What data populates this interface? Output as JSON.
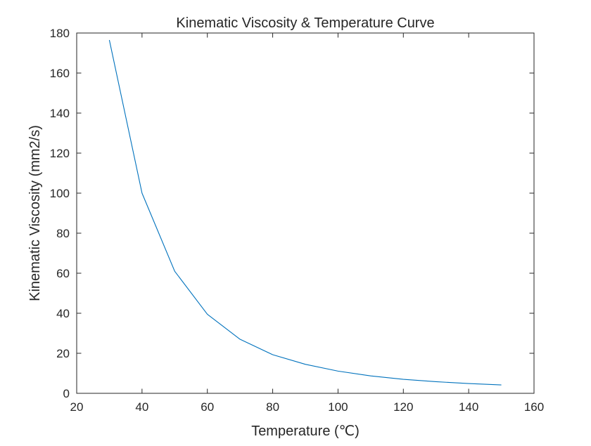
{
  "chart_data": {
    "type": "line",
    "title": "Kinematic Viscosity & Temperature Curve",
    "xlabel": "Temperature (℃)",
    "ylabel": "Kinematic Viscosity (mm2/s)",
    "xlim": [
      20,
      160
    ],
    "ylim": [
      0,
      180
    ],
    "xticks": [
      20,
      40,
      60,
      80,
      100,
      120,
      140,
      160
    ],
    "yticks": [
      0,
      20,
      40,
      60,
      80,
      100,
      120,
      140,
      160,
      180
    ],
    "grid": false,
    "series": [
      {
        "color": "#0072BD",
        "x": [
          30,
          40,
          50,
          60,
          70,
          80,
          90,
          100,
          110,
          120,
          130,
          140,
          150
        ],
        "y": [
          176.5,
          100,
          61,
          39.5,
          27,
          19.3,
          14.5,
          11.1,
          8.7,
          7.0,
          5.8,
          4.9,
          4.2
        ]
      }
    ]
  }
}
